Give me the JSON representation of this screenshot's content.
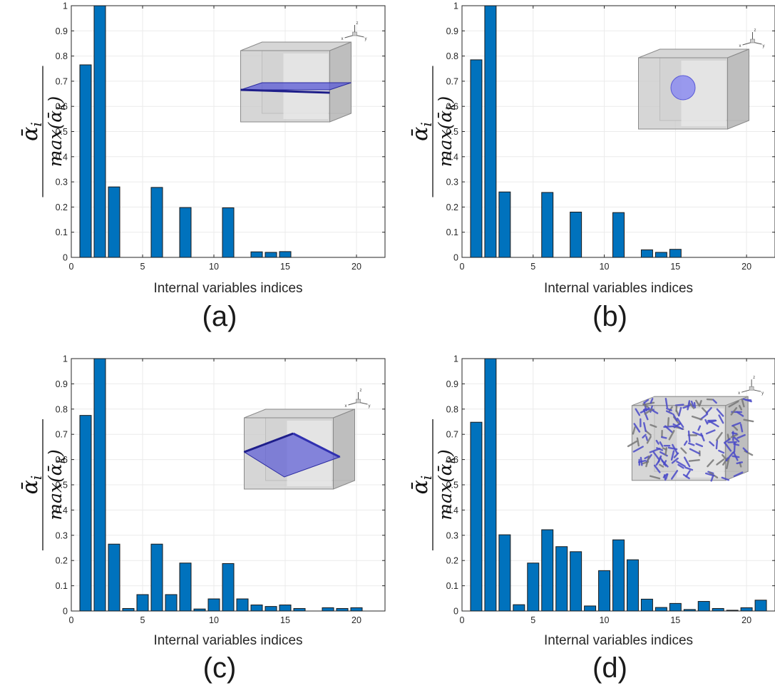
{
  "figure": {
    "colors": {
      "bar_fill": "#0072bd",
      "bar_edge": "#1a1a1a",
      "grid": "#ebebeb",
      "inset_glass": "#c8c8c8",
      "inset_inclusion": "#5a5ad6"
    },
    "inset_axis_labels": {
      "z": "z",
      "x": "x",
      "y": "y"
    }
  },
  "chart_data": [
    {
      "type": "bar",
      "panel_label": "(a)",
      "xlabel": "Internal variables indices",
      "ylabel_numerator": "ᾱ",
      "ylabel_numerator_sub": "i",
      "ylabel_denominator": "max(ᾱ",
      "ylabel_denominator_sub": "k",
      "ylabel_denominator_close": ")",
      "xlim": [
        0,
        22
      ],
      "ylim": [
        0,
        1
      ],
      "xticks": [
        0,
        5,
        10,
        15,
        20
      ],
      "yticks": [
        0,
        0.1,
        0.2,
        0.3,
        0.4,
        0.5,
        0.6,
        0.7,
        0.8,
        0.9,
        1
      ],
      "grid": true,
      "inset": "horizontal plate inclusion in cube",
      "x": [
        1,
        2,
        3,
        4,
        5,
        6,
        7,
        8,
        9,
        10,
        11,
        12,
        13,
        14,
        15,
        16,
        17,
        18,
        19,
        20,
        21
      ],
      "values": [
        0.765,
        1.0,
        0.28,
        0,
        0,
        0.278,
        0,
        0.198,
        0,
        0,
        0.197,
        0,
        0.022,
        0.02,
        0.023,
        0,
        0,
        0,
        0,
        0,
        0
      ]
    },
    {
      "type": "bar",
      "panel_label": "(b)",
      "xlabel": "Internal variables indices",
      "ylabel_numerator": "ᾱ",
      "ylabel_numerator_sub": "i",
      "ylabel_denominator": "max(ᾱ",
      "ylabel_denominator_sub": "k",
      "ylabel_denominator_close": ")",
      "xlim": [
        0,
        22
      ],
      "ylim": [
        0,
        1
      ],
      "xticks": [
        0,
        5,
        10,
        15,
        20
      ],
      "yticks": [
        0,
        0.1,
        0.2,
        0.3,
        0.4,
        0.5,
        0.6,
        0.7,
        0.8,
        0.9,
        1
      ],
      "grid": true,
      "inset": "spherical inclusion in cube",
      "x": [
        1,
        2,
        3,
        4,
        5,
        6,
        7,
        8,
        9,
        10,
        11,
        12,
        13,
        14,
        15,
        16,
        17,
        18,
        19,
        20,
        21
      ],
      "values": [
        0.785,
        1.0,
        0.26,
        0,
        0,
        0.258,
        0,
        0.18,
        0,
        0,
        0.178,
        0,
        0.03,
        0.02,
        0.032,
        0,
        0,
        0,
        0,
        0,
        0
      ]
    },
    {
      "type": "bar",
      "panel_label": "(c)",
      "xlabel": "Internal variables indices",
      "ylabel_numerator": "ᾱ",
      "ylabel_numerator_sub": "i",
      "ylabel_denominator": "max(ᾱ",
      "ylabel_denominator_sub": "k",
      "ylabel_denominator_close": ")",
      "xlim": [
        0,
        22
      ],
      "ylim": [
        0,
        1
      ],
      "xticks": [
        0,
        5,
        10,
        15,
        20
      ],
      "yticks": [
        0,
        0.1,
        0.2,
        0.3,
        0.4,
        0.5,
        0.6,
        0.7,
        0.8,
        0.9,
        1
      ],
      "grid": true,
      "inset": "inclined plate inclusion in cube",
      "x": [
        1,
        2,
        3,
        4,
        5,
        6,
        7,
        8,
        9,
        10,
        11,
        12,
        13,
        14,
        15,
        16,
        17,
        18,
        19,
        20,
        21
      ],
      "values": [
        0.775,
        1.0,
        0.265,
        0.01,
        0.065,
        0.265,
        0.065,
        0.19,
        0.008,
        0.048,
        0.188,
        0.048,
        0.024,
        0.018,
        0.024,
        0.01,
        0,
        0.013,
        0.01,
        0.013,
        0
      ]
    },
    {
      "type": "bar",
      "panel_label": "(d)",
      "xlabel": "Internal variables indices",
      "ylabel_numerator": "ᾱ",
      "ylabel_numerator_sub": "i",
      "ylabel_denominator": "max(ᾱ",
      "ylabel_denominator_sub": "k",
      "ylabel_denominator_close": ")",
      "xlim": [
        0,
        22
      ],
      "ylim": [
        0,
        1
      ],
      "xticks": [
        0,
        5,
        10,
        15,
        20
      ],
      "yticks": [
        0,
        0.1,
        0.2,
        0.3,
        0.4,
        0.5,
        0.6,
        0.7,
        0.8,
        0.9,
        1
      ],
      "grid": true,
      "inset": "random short-fiber inclusions in cube",
      "x": [
        1,
        2,
        3,
        4,
        5,
        6,
        7,
        8,
        9,
        10,
        11,
        12,
        13,
        14,
        15,
        16,
        17,
        18,
        19,
        20,
        21
      ],
      "values": [
        0.748,
        1.0,
        0.302,
        0.025,
        0.19,
        0.322,
        0.255,
        0.235,
        0.02,
        0.16,
        0.282,
        0.203,
        0.047,
        0.014,
        0.03,
        0.006,
        0.038,
        0.01,
        0.003,
        0.013,
        0.043
      ]
    }
  ]
}
